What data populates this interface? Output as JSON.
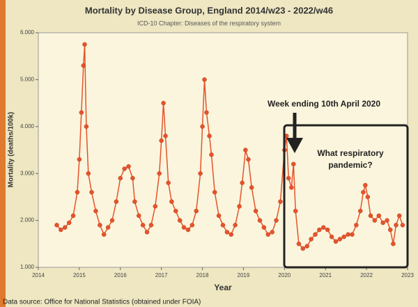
{
  "chart_data": {
    "type": "line",
    "title": "Mortality by Disease Group, England 2014/w23 - 2022/w46",
    "subtitle": "ICD-10 Chapter: Diseases of the respiratory system",
    "x_label": "Year",
    "y_label": "Mortality (deaths/100k)",
    "annotations": [
      "Week ending 10th April 2020",
      "What respiratory pandemic?"
    ],
    "source": "Data source: Office for National Statistics (obtained under FOIA)",
    "xlim": [
      2014,
      2023
    ],
    "xticks": [
      2014,
      2015,
      2016,
      2017,
      2018,
      2019,
      2020,
      2021,
      2022,
      2023
    ],
    "ylim": [
      1,
      6
    ],
    "yticks": [
      {
        "value": 1,
        "label": "1.000"
      },
      {
        "value": 2,
        "label": "2.000"
      },
      {
        "value": 3,
        "label": "3.000"
      },
      {
        "value": 4,
        "label": "4.000"
      },
      {
        "value": 5,
        "label": "5.000"
      },
      {
        "value": 6,
        "label": "6.000"
      }
    ],
    "x": [
      2014.45,
      2014.55,
      2014.65,
      2014.75,
      2014.85,
      2014.95,
      2015.0,
      2015.05,
      2015.1,
      2015.13,
      2015.17,
      2015.22,
      2015.3,
      2015.4,
      2015.5,
      2015.6,
      2015.7,
      2015.8,
      2015.9,
      2016.0,
      2016.1,
      2016.2,
      2016.3,
      2016.35,
      2016.45,
      2016.55,
      2016.65,
      2016.75,
      2016.85,
      2016.95,
      2017.0,
      2017.05,
      2017.1,
      2017.17,
      2017.25,
      2017.35,
      2017.45,
      2017.55,
      2017.65,
      2017.75,
      2017.85,
      2017.95,
      2018.0,
      2018.05,
      2018.1,
      2018.17,
      2018.22,
      2018.3,
      2018.4,
      2018.5,
      2018.6,
      2018.7,
      2018.8,
      2018.9,
      2018.97,
      2019.05,
      2019.12,
      2019.2,
      2019.3,
      2019.4,
      2019.5,
      2019.6,
      2019.7,
      2019.8,
      2019.9,
      2020.0,
      2020.05,
      2020.1,
      2020.17,
      2020.22,
      2020.27,
      2020.35,
      2020.45,
      2020.55,
      2020.65,
      2020.75,
      2020.85,
      2020.95,
      2021.05,
      2021.15,
      2021.25,
      2021.35,
      2021.45,
      2021.55,
      2021.65,
      2021.75,
      2021.85,
      2021.92,
      2021.97,
      2022.03,
      2022.1,
      2022.2,
      2022.3,
      2022.4,
      2022.5,
      2022.58,
      2022.65,
      2022.72,
      2022.8,
      2022.88
    ],
    "series": [
      {
        "name": "Mortality",
        "color": "#e5532c",
        "values": [
          1.9,
          1.8,
          1.85,
          1.95,
          2.1,
          2.6,
          3.3,
          4.3,
          5.3,
          5.75,
          4.0,
          3.0,
          2.6,
          2.2,
          1.9,
          1.7,
          1.85,
          2.0,
          2.4,
          2.9,
          3.1,
          3.15,
          2.9,
          2.4,
          2.1,
          1.9,
          1.75,
          1.9,
          2.3,
          3.0,
          3.7,
          4.5,
          3.8,
          2.8,
          2.4,
          2.2,
          2.0,
          1.85,
          1.8,
          1.9,
          2.2,
          3.0,
          4.0,
          5.0,
          4.3,
          3.8,
          3.4,
          2.6,
          2.1,
          1.9,
          1.75,
          1.7,
          1.9,
          2.3,
          2.8,
          3.5,
          3.3,
          2.7,
          2.2,
          2.0,
          1.85,
          1.7,
          1.75,
          2.0,
          2.4,
          3.5,
          3.8,
          2.9,
          2.7,
          3.2,
          2.2,
          1.5,
          1.4,
          1.45,
          1.6,
          1.7,
          1.8,
          1.85,
          1.8,
          1.65,
          1.55,
          1.6,
          1.65,
          1.7,
          1.7,
          1.9,
          2.2,
          2.6,
          2.75,
          2.5,
          2.1,
          2.0,
          2.1,
          1.95,
          2.0,
          1.8,
          1.5,
          1.9,
          2.1,
          1.9
        ]
      }
    ]
  }
}
